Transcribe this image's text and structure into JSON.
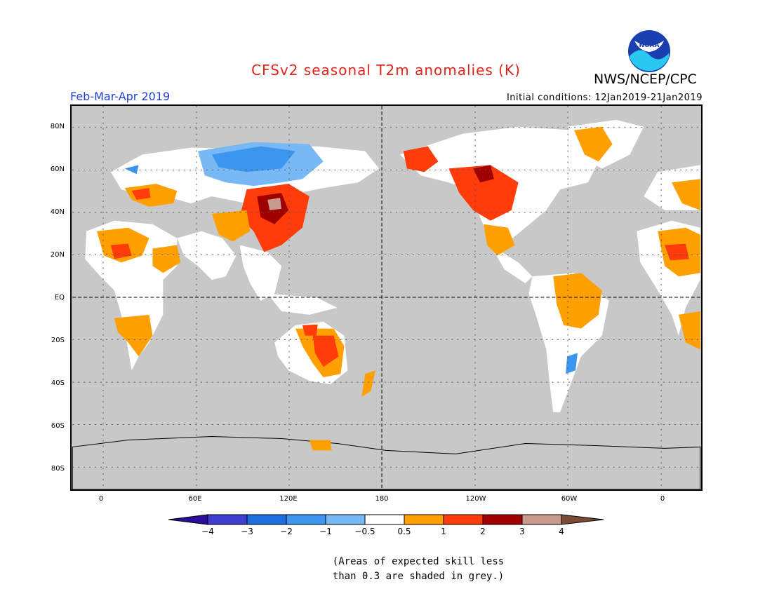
{
  "header": {
    "title": "CFSv2 seasonal T2m anomalies (K)",
    "agency": "NWS/NCEP/CPC",
    "logo_text": "NOAA",
    "period": "Feb-Mar-Apr 2019",
    "initial_conditions": "Initial conditions: 12Jan2019-21Jan2019"
  },
  "map": {
    "projection": "cylindrical, centered at 180",
    "lat_labels": [
      "80N",
      "60N",
      "40N",
      "20N",
      "EQ",
      "20S",
      "40S",
      "60S",
      "80S"
    ],
    "lon_labels": [
      "0",
      "60E",
      "120E",
      "180",
      "120W",
      "60W",
      "0"
    ],
    "grid": "dotted, every 30 degrees",
    "grey_shading": "skill less than 0.3",
    "colors": {
      "skill_grey": "#c8c8c8",
      "warm_0_5_1": "#ffa000",
      "warm_1_2": "#ff3c0a",
      "warm_2_3": "#a00000",
      "warm_3_4": "#c89a8c",
      "cool_0_5_1": "#78b8f4",
      "cool_1_2": "#3c96f0",
      "neutral": "#ffffff"
    }
  },
  "colorbar": {
    "labels": [
      "−4",
      "−3",
      "−2",
      "−1",
      "−0.5",
      "0.5",
      "1",
      "2",
      "3",
      "4"
    ],
    "colors": [
      "#2a0e99",
      "#3e3ed0",
      "#1e6ee0",
      "#3c96f0",
      "#78b8f4",
      "#ffffff",
      "#ffa000",
      "#ff3c0a",
      "#a00000",
      "#c89a8c",
      "#7a4a35"
    ]
  },
  "footnote": {
    "line1": "(Areas of expected skill less",
    "line2": "than 0.3 are shaded in grey.)"
  }
}
